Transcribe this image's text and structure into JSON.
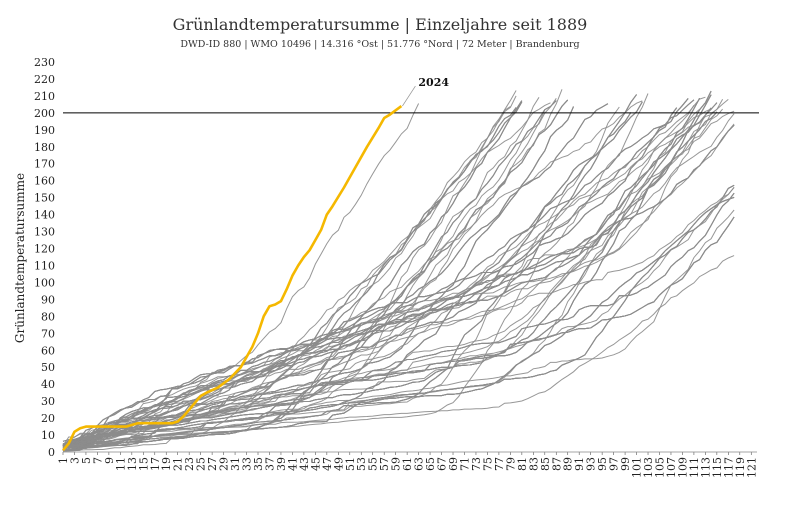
{
  "chart_data": {
    "type": "line",
    "title": "Grünlandtemperatursumme | Einzeljahre seit 1889",
    "subtitle": "DWD-ID 880  | WMO 10496  | 14.316 °Ost | 51.776 °Nord  | 72 Meter  | Brandenburg",
    "ylabel": "Grünlandtemperatursumme",
    "xlabel": "",
    "ylim": [
      0,
      230
    ],
    "yticks": [
      0,
      10,
      20,
      30,
      40,
      50,
      60,
      70,
      80,
      90,
      100,
      110,
      120,
      130,
      140,
      150,
      160,
      170,
      180,
      190,
      200,
      210,
      220,
      230
    ],
    "xlim": [
      1,
      122
    ],
    "xticks": [
      "1",
      "3",
      "5",
      "7",
      "9",
      "11",
      "13",
      "15",
      "17",
      "19",
      "21",
      "23",
      "25",
      "27",
      "29",
      "31",
      "33",
      "35",
      "37",
      "39",
      "41",
      "43",
      "45",
      "47",
      "49",
      "51",
      "53",
      "55",
      "57",
      "59",
      "61",
      "63",
      "65",
      "67",
      "69",
      "71",
      "73",
      "75",
      "77",
      "79",
      "81",
      "83",
      "85",
      "87",
      "89",
      "91",
      "93",
      "95",
      "97",
      "99",
      "101",
      "103",
      "105",
      "107",
      "109",
      "111",
      "113",
      "115",
      "117",
      "119",
      "121"
    ],
    "threshold": 200,
    "grid": false,
    "colors": {
      "history": "#8c8c8c",
      "highlight": "#f5b800",
      "threshold": "#000000"
    },
    "highlight_series": {
      "name": "2024",
      "x": [
        1,
        2,
        3,
        4,
        5,
        6,
        8,
        10,
        12,
        14,
        16,
        18,
        20,
        21,
        22,
        23,
        24,
        25,
        26,
        28,
        30,
        32,
        34,
        35,
        36,
        37,
        38,
        39,
        40,
        41,
        42,
        43,
        44,
        45,
        46,
        47,
        48,
        50,
        52,
        54,
        56,
        57,
        58,
        60
      ],
      "y": [
        1,
        5,
        12,
        14,
        15,
        15,
        15,
        15,
        15,
        17,
        17,
        17,
        17,
        18,
        21,
        25,
        29,
        33,
        35,
        38,
        43,
        50,
        62,
        70,
        80,
        86,
        87,
        89,
        96,
        104,
        110,
        115,
        119,
        125,
        131,
        140,
        145,
        156,
        168,
        180,
        191,
        197,
        199,
        204
      ]
    },
    "historical_series": {
      "count": 135,
      "description_x_range": [
        1,
        118
      ],
      "seed": 1889
    }
  }
}
